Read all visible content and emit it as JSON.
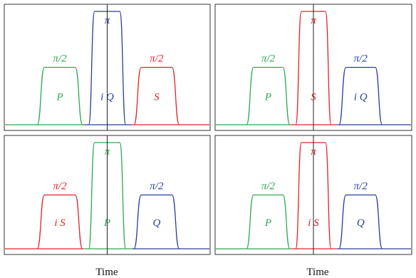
{
  "colors": {
    "green": "#2fa84f",
    "blue": "#2a3f9a",
    "red": "#e0242b",
    "frame": "#333333",
    "centerline": "#222222"
  },
  "xlabel": "Time",
  "panels": [
    {
      "pulses": [
        {
          "color": "green",
          "label": "P",
          "angle": "π/2",
          "tall": false
        },
        {
          "color": "blue",
          "label": "i Q",
          "angle": "π",
          "tall": true
        },
        {
          "color": "red",
          "label": "S",
          "angle": "π/2",
          "tall": false
        }
      ]
    },
    {
      "pulses": [
        {
          "color": "green",
          "label": "P",
          "angle": "π/2",
          "tall": false
        },
        {
          "color": "red",
          "label": "S",
          "angle": "π",
          "tall": true
        },
        {
          "color": "blue",
          "label": "i Q",
          "angle": "π/2",
          "tall": false
        }
      ]
    },
    {
      "pulses": [
        {
          "color": "red",
          "label": "i S",
          "angle": "π/2",
          "tall": false
        },
        {
          "color": "green",
          "label": "P",
          "angle": "π",
          "tall": true
        },
        {
          "color": "blue",
          "label": "Q",
          "angle": "π/2",
          "tall": false
        }
      ]
    },
    {
      "pulses": [
        {
          "color": "green",
          "label": "P",
          "angle": "π/2",
          "tall": false
        },
        {
          "color": "red",
          "label": "i S",
          "angle": "π",
          "tall": true
        },
        {
          "color": "blue",
          "label": "Q",
          "angle": "π/2",
          "tall": false
        }
      ]
    }
  ]
}
